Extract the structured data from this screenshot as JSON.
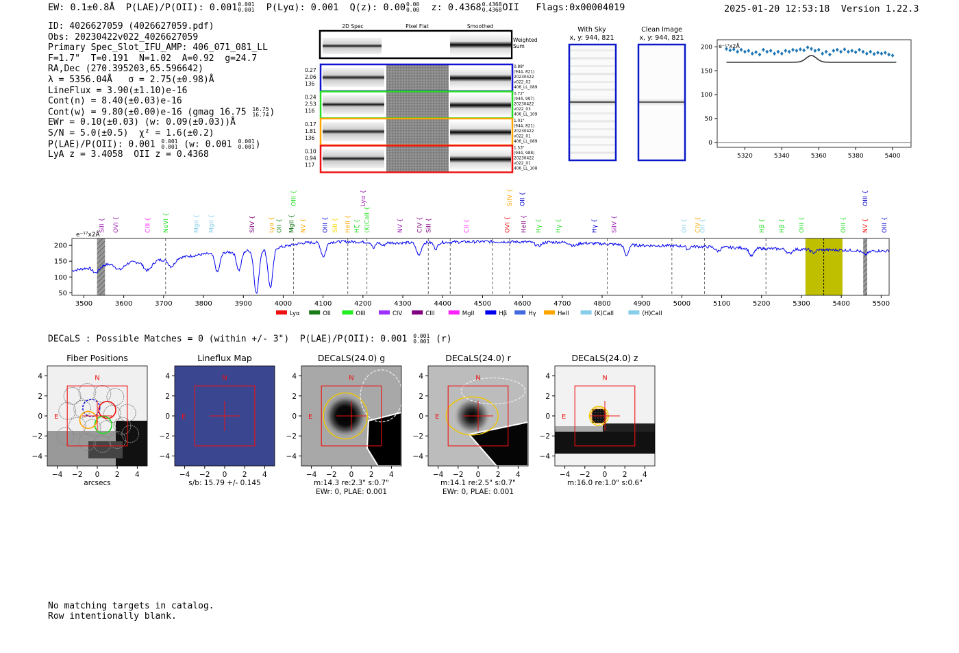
{
  "header": {
    "ew": "EW: 0.1±0.8Å",
    "plae": "P(LAE)/P(OII): 0.001",
    "plae_hi": "0.001",
    "plae_lo": "0.001",
    "plya": "P(Lyα): 0.001",
    "qz": "Q(z): 0.00",
    "qz_hi": "0.00",
    "qz_lo": "0.00",
    "z": "z: 0.4368",
    "z_hi": "0.4368",
    "z_lo": "0.4368",
    "z_line": "OII",
    "flags": "Flags:0x00004019",
    "datetime": "2025-01-20 12:53:18",
    "version": "Version 1.22.3"
  },
  "info": {
    "id": "ID: 4026627059 (4026627059.pdf)",
    "obs": "Obs: 20230422v022_4026627059",
    "primary": "Primary Spec_Slot_IFU_AMP: 406_071_081_LL",
    "fiber": "F=1.7\"  T=0.191  N=1.02  A=0.92  g=24.7",
    "radec": "RA,Dec (270.395203,65.596642)",
    "lambda": "λ = 5356.04Å   σ = 2.75(±0.98)Å",
    "lineflux": "LineFlux = 3.90(±1.10)e-16",
    "contn": "Cont(n) = 8.40(±0.03)e-16",
    "contw": "Cont(w) = 9.80(±0.00)e-16 (gmag 16.75",
    "contw_hi": "16.75",
    "contw_lo": "16.74",
    "contw_end": ")",
    "ewr": "EWr = 0.10(±0.03) (w: 0.09(±0.03))Å",
    "sn": "S/N = 5.0(±0.5)  χ² = 1.6(±0.2)",
    "plae": "P(LAE)/P(OII): 0.001",
    "plae_hi": "0.001",
    "plae_lo": "0.001",
    "plae_w": "(w: 0.001",
    "plae_w_hi": "0.001",
    "plae_w_lo": "0.001",
    "plae_end": ")",
    "lyaz": "LyA z = 3.4058  OII z = 0.4368"
  },
  "cutouts": {
    "col_2d": "2D Spec",
    "col_flat": "Pixel Flat",
    "col_smooth": "Smoothed",
    "weighted": "Weighted",
    "sum": "Sum",
    "rows": [
      {
        "v1": "0.27",
        "v2": "2.06",
        "v3": "136",
        "color": "#1010d0",
        "d1": "0.88\"",
        "d2": "(944, 821)",
        "d3": "20230422",
        "d4": "v022_02",
        "d5": "406_LL_089"
      },
      {
        "v1": "0.24",
        "v2": "2.53",
        "v3": "116",
        "color": "#22dd22",
        "d1": "0.72\"",
        "d2": "(944, 997)",
        "d3": "20230422",
        "d4": "v022_03",
        "d5": "406_LL_109"
      },
      {
        "v1": "0.17",
        "v2": "1.81",
        "v3": "136",
        "color": "#ffa500",
        "d1": "1.01\"",
        "d2": "(944, 821)",
        "d3": "20230422",
        "d4": "v022_01",
        "d5": "406_LL_089"
      },
      {
        "v1": "0.10",
        "v2": "0.94",
        "v3": "117",
        "color": "#ee1111",
        "d1": "1.53\"",
        "d2": "(944, 988)",
        "d3": "20230422",
        "d4": "v022_01",
        "d5": "406_LL_108"
      }
    ]
  },
  "sky": {
    "with_sky": "With Sky",
    "with_sky_xy": "x, y: 944, 821",
    "clean": "Clean Image",
    "clean_xy": "x, y: 944, 821"
  },
  "zoom_chart": {
    "type": "scatter",
    "unit_label": "e⁻¹⁷x2Å",
    "x_ticks": [
      "5320",
      "5340",
      "5360",
      "5380",
      "5400"
    ],
    "y_ticks": [
      "0",
      "50",
      "100",
      "150",
      "200"
    ],
    "xlim": [
      5305,
      5410
    ],
    "ylim": [
      -10,
      215
    ],
    "points": [
      [
        5310,
        196
      ],
      [
        5312,
        193
      ],
      [
        5314,
        195
      ],
      [
        5316,
        190
      ],
      [
        5318,
        194
      ],
      [
        5320,
        190
      ],
      [
        5322,
        192
      ],
      [
        5324,
        186
      ],
      [
        5326,
        189
      ],
      [
        5328,
        184
      ],
      [
        5330,
        194
      ],
      [
        5332,
        190
      ],
      [
        5334,
        192
      ],
      [
        5336,
        186
      ],
      [
        5338,
        190
      ],
      [
        5340,
        186
      ],
      [
        5342,
        192
      ],
      [
        5344,
        190
      ],
      [
        5346,
        194
      ],
      [
        5348,
        192
      ],
      [
        5350,
        195
      ],
      [
        5352,
        193
      ],
      [
        5354,
        199
      ],
      [
        5356,
        196
      ],
      [
        5358,
        192
      ],
      [
        5360,
        194
      ],
      [
        5362,
        186
      ],
      [
        5364,
        190
      ],
      [
        5366,
        184
      ],
      [
        5368,
        192
      ],
      [
        5370,
        194
      ],
      [
        5372,
        190
      ],
      [
        5374,
        195
      ],
      [
        5376,
        190
      ],
      [
        5378,
        192
      ],
      [
        5380,
        189
      ],
      [
        5382,
        194
      ],
      [
        5384,
        190
      ],
      [
        5386,
        186
      ],
      [
        5388,
        190
      ],
      [
        5390,
        185
      ],
      [
        5392,
        188
      ],
      [
        5394,
        186
      ],
      [
        5396,
        188
      ],
      [
        5398,
        184
      ],
      [
        5400,
        182
      ]
    ],
    "fit": {
      "baseline": 168,
      "center": 5356,
      "amp": 14,
      "sigma": 2.75,
      "x0": 5310,
      "x1": 5402
    }
  },
  "spectrum_chart": {
    "type": "line",
    "unit_label": "e⁻¹⁷x2Å",
    "xlim": [
      3470,
      5520
    ],
    "ylim": [
      42,
      222
    ],
    "x_ticks": [
      "3500",
      "3600",
      "3700",
      "3800",
      "3900",
      "4000",
      "4100",
      "4200",
      "4300",
      "4400",
      "4500",
      "4600",
      "4700",
      "4800",
      "4900",
      "5000",
      "5100",
      "5200",
      "5300",
      "5400",
      "5500"
    ],
    "y_ticks": [
      "50",
      "100",
      "150",
      "200"
    ],
    "continuum_knots": [
      [
        3470,
        120
      ],
      [
        3560,
        140
      ],
      [
        3700,
        155
      ],
      [
        3800,
        172
      ],
      [
        3900,
        182
      ],
      [
        4000,
        196
      ],
      [
        4050,
        208
      ],
      [
        4150,
        212
      ],
      [
        4300,
        208
      ],
      [
        4500,
        212
      ],
      [
        4700,
        210
      ],
      [
        4900,
        200
      ],
      [
        5000,
        198
      ],
      [
        5200,
        190
      ],
      [
        5400,
        185
      ],
      [
        5520,
        182
      ]
    ],
    "absorption_lines": [
      [
        3933,
        140,
        6
      ],
      [
        3968,
        125,
        6
      ],
      [
        3835,
        60,
        6
      ],
      [
        3889,
        60,
        6
      ],
      [
        4101,
        45,
        6
      ],
      [
        4340,
        40,
        6
      ],
      [
        4861,
        35,
        5
      ],
      [
        4383,
        20,
        5
      ],
      [
        4227,
        20,
        4
      ],
      [
        3720,
        25,
        8
      ],
      [
        5175,
        25,
        6
      ],
      [
        5270,
        15,
        6
      ],
      [
        5015,
        10,
        4
      ],
      [
        3660,
        30,
        10
      ],
      [
        3590,
        20,
        10
      ],
      [
        3530,
        20,
        8
      ],
      [
        4250,
        10,
        5
      ],
      [
        4640,
        12,
        8
      ],
      [
        4730,
        10,
        8
      ],
      [
        5090,
        12,
        6
      ],
      [
        5330,
        10,
        6
      ],
      [
        5460,
        12,
        8
      ]
    ],
    "grey_bands": [
      [
        3533,
        3553
      ],
      [
        5455,
        5465
      ]
    ],
    "highlight": [
      5310,
      5403
    ],
    "highlight_center": 5356,
    "dashed_lines": [
      3705,
      4026,
      4162,
      4210,
      4364,
      4419,
      4525,
      4568,
      4813,
      4975,
      5057,
      5211
    ],
    "markers": [
      {
        "label": "SiII",
        "x": 3545,
        "color": "#9b1fb0",
        "level": 1
      },
      {
        "label": "OVI",
        "x": 3580,
        "color": "#9b1fb0",
        "level": 1
      },
      {
        "label": "CIII",
        "x": 3660,
        "color": "#ff22ff",
        "level": 1
      },
      {
        "label": "NeVI",
        "x": 3705,
        "color": "#22dd22",
        "level": 1
      },
      {
        "label": "MgII",
        "x": 3782,
        "color": "#87ceeb",
        "level": 1
      },
      {
        "label": "MgII",
        "x": 3820,
        "color": "#87ceeb",
        "level": 1
      },
      {
        "label": "SiIV",
        "x": 3922,
        "color": "#800080",
        "level": 1
      },
      {
        "label": "Lyα",
        "x": 3970,
        "color": "#ffa500",
        "level": 1
      },
      {
        "label": "OII",
        "x": 3990,
        "color": "#228b22",
        "level": 1
      },
      {
        "label": "MgII",
        "x": 4021,
        "color": "#006400",
        "level": 1
      },
      {
        "label": "OIII",
        "x": 4026,
        "color": "#22dd22",
        "level": 3
      },
      {
        "label": "NV",
        "x": 4050,
        "color": "#ffa500",
        "level": 1
      },
      {
        "label": "OIII",
        "x": 4105,
        "color": "#0000cc",
        "level": 1
      },
      {
        "label": "SiII",
        "x": 4130,
        "color": "#ffd700",
        "level": 1
      },
      {
        "label": "HeII",
        "x": 4162,
        "color": "#ffa500",
        "level": 1
      },
      {
        "label": "Hζ",
        "x": 4185,
        "color": "#22dd22",
        "level": 1
      },
      {
        "label": "(K)CaII",
        "x": 4210,
        "color": "#22dd22",
        "level": 1
      },
      {
        "label": "Lyα",
        "x": 4200,
        "color": "#9b1fb0",
        "level": 3
      },
      {
        "label": "NV",
        "x": 4293,
        "color": "#9b1fb0",
        "level": 1
      },
      {
        "label": "CIV",
        "x": 4342,
        "color": "#800080",
        "level": 1
      },
      {
        "label": "SiII",
        "x": 4364,
        "color": "#800080",
        "level": 1
      },
      {
        "label": "CII",
        "x": 4460,
        "color": "#ff22ff",
        "level": 1
      },
      {
        "label": "OVI",
        "x": 4562,
        "color": "#ee1111",
        "level": 1
      },
      {
        "label": "SiIV",
        "x": 4568,
        "color": "#ffa500",
        "level": 3
      },
      {
        "label": "OII",
        "x": 4600,
        "color": "#0000cc",
        "level": 3
      },
      {
        "label": "HeII",
        "x": 4603,
        "color": "#800080",
        "level": 1
      },
      {
        "label": "Hγ",
        "x": 4640,
        "color": "#22dd22",
        "level": 1
      },
      {
        "label": "Hγ",
        "x": 4690,
        "color": "#22dd22",
        "level": 1
      },
      {
        "label": "Hγ",
        "x": 4780,
        "color": "#0000cc",
        "level": 1
      },
      {
        "label": "SiIV",
        "x": 4830,
        "color": "#9b1fb0",
        "level": 1
      },
      {
        "label": "OII",
        "x": 5005,
        "color": "#87ceeb",
        "level": 1
      },
      {
        "label": "CIV",
        "x": 5040,
        "color": "#ffa500",
        "level": 1
      },
      {
        "label": "OII",
        "x": 5052,
        "color": "#87ceeb",
        "level": 1
      },
      {
        "label": "Hβ",
        "x": 5200,
        "color": "#22dd22",
        "level": 1
      },
      {
        "label": "Hβ",
        "x": 5250,
        "color": "#22dd22",
        "level": 1
      },
      {
        "label": "OIII",
        "x": 5300,
        "color": "#22dd22",
        "level": 1
      },
      {
        "label": "OIII",
        "x": 5405,
        "color": "#22dd22",
        "level": 1
      },
      {
        "label": "NV",
        "x": 5460,
        "color": "#ee1111",
        "level": 1
      },
      {
        "label": "OIII",
        "x": 5460,
        "color": "#0000cc",
        "level": 3
      },
      {
        "label": "OIII",
        "x": 5508,
        "color": "#0000cc",
        "level": 1
      }
    ],
    "legend": [
      {
        "label": "Lyα",
        "color": "#ee1111"
      },
      {
        "label": "OII",
        "color": "#1a7a1a"
      },
      {
        "label": "OIII",
        "color": "#22ee22"
      },
      {
        "label": "CIV",
        "color": "#9b30ff"
      },
      {
        "label": "CIII",
        "color": "#800080"
      },
      {
        "label": "MgII",
        "color": "#ff22ff"
      },
      {
        "label": "Hβ",
        "color": "#0000ee"
      },
      {
        "label": "Hγ",
        "color": "#4169e1"
      },
      {
        "label": "HeII",
        "color": "#ffa500"
      },
      {
        "label": "(K)CaII",
        "color": "#87ceeb"
      },
      {
        "label": "(H)CaII",
        "color": "#87ceeb"
      }
    ]
  },
  "decals": {
    "summary": "DECaLS : Possible Matches = 0 (within +/- 3\")  P(LAE)/P(OII): 0.001",
    "summary_hi": "0.001",
    "summary_lo": "0.001",
    "summary_end": "(r)",
    "panels": [
      {
        "title": "Fiber Positions",
        "caption1": "arcsecs",
        "caption2": ""
      },
      {
        "title": "Lineflux Map",
        "caption1": "s/b: 15.79 +/- 0.145",
        "caption2": ""
      },
      {
        "title": "DECaLS(24.0) g",
        "caption1": "m:14.3  re:2.3\"  s:0.7\"",
        "caption2": "EWr: 0, PLAE: 0.001"
      },
      {
        "title": "DECaLS(24.0) r",
        "caption1": "m:14.1  re:2.5\"  s:0.7\"",
        "caption2": "EWr: 0, PLAE: 0.001"
      },
      {
        "title": "DECaLS(24.0) z",
        "caption1": "m:16.0  re:1.0\"  s:0.6\"",
        "caption2": ""
      }
    ],
    "north": "N",
    "east": "E",
    "ticks": [
      "4",
      "2",
      "0",
      "−2",
      "−4"
    ],
    "xticks": [
      "−4",
      "−2",
      "0",
      "2",
      "4"
    ]
  },
  "footer": {
    "line1": "No matching targets in catalog.",
    "line2": "Row intentionally blank."
  }
}
